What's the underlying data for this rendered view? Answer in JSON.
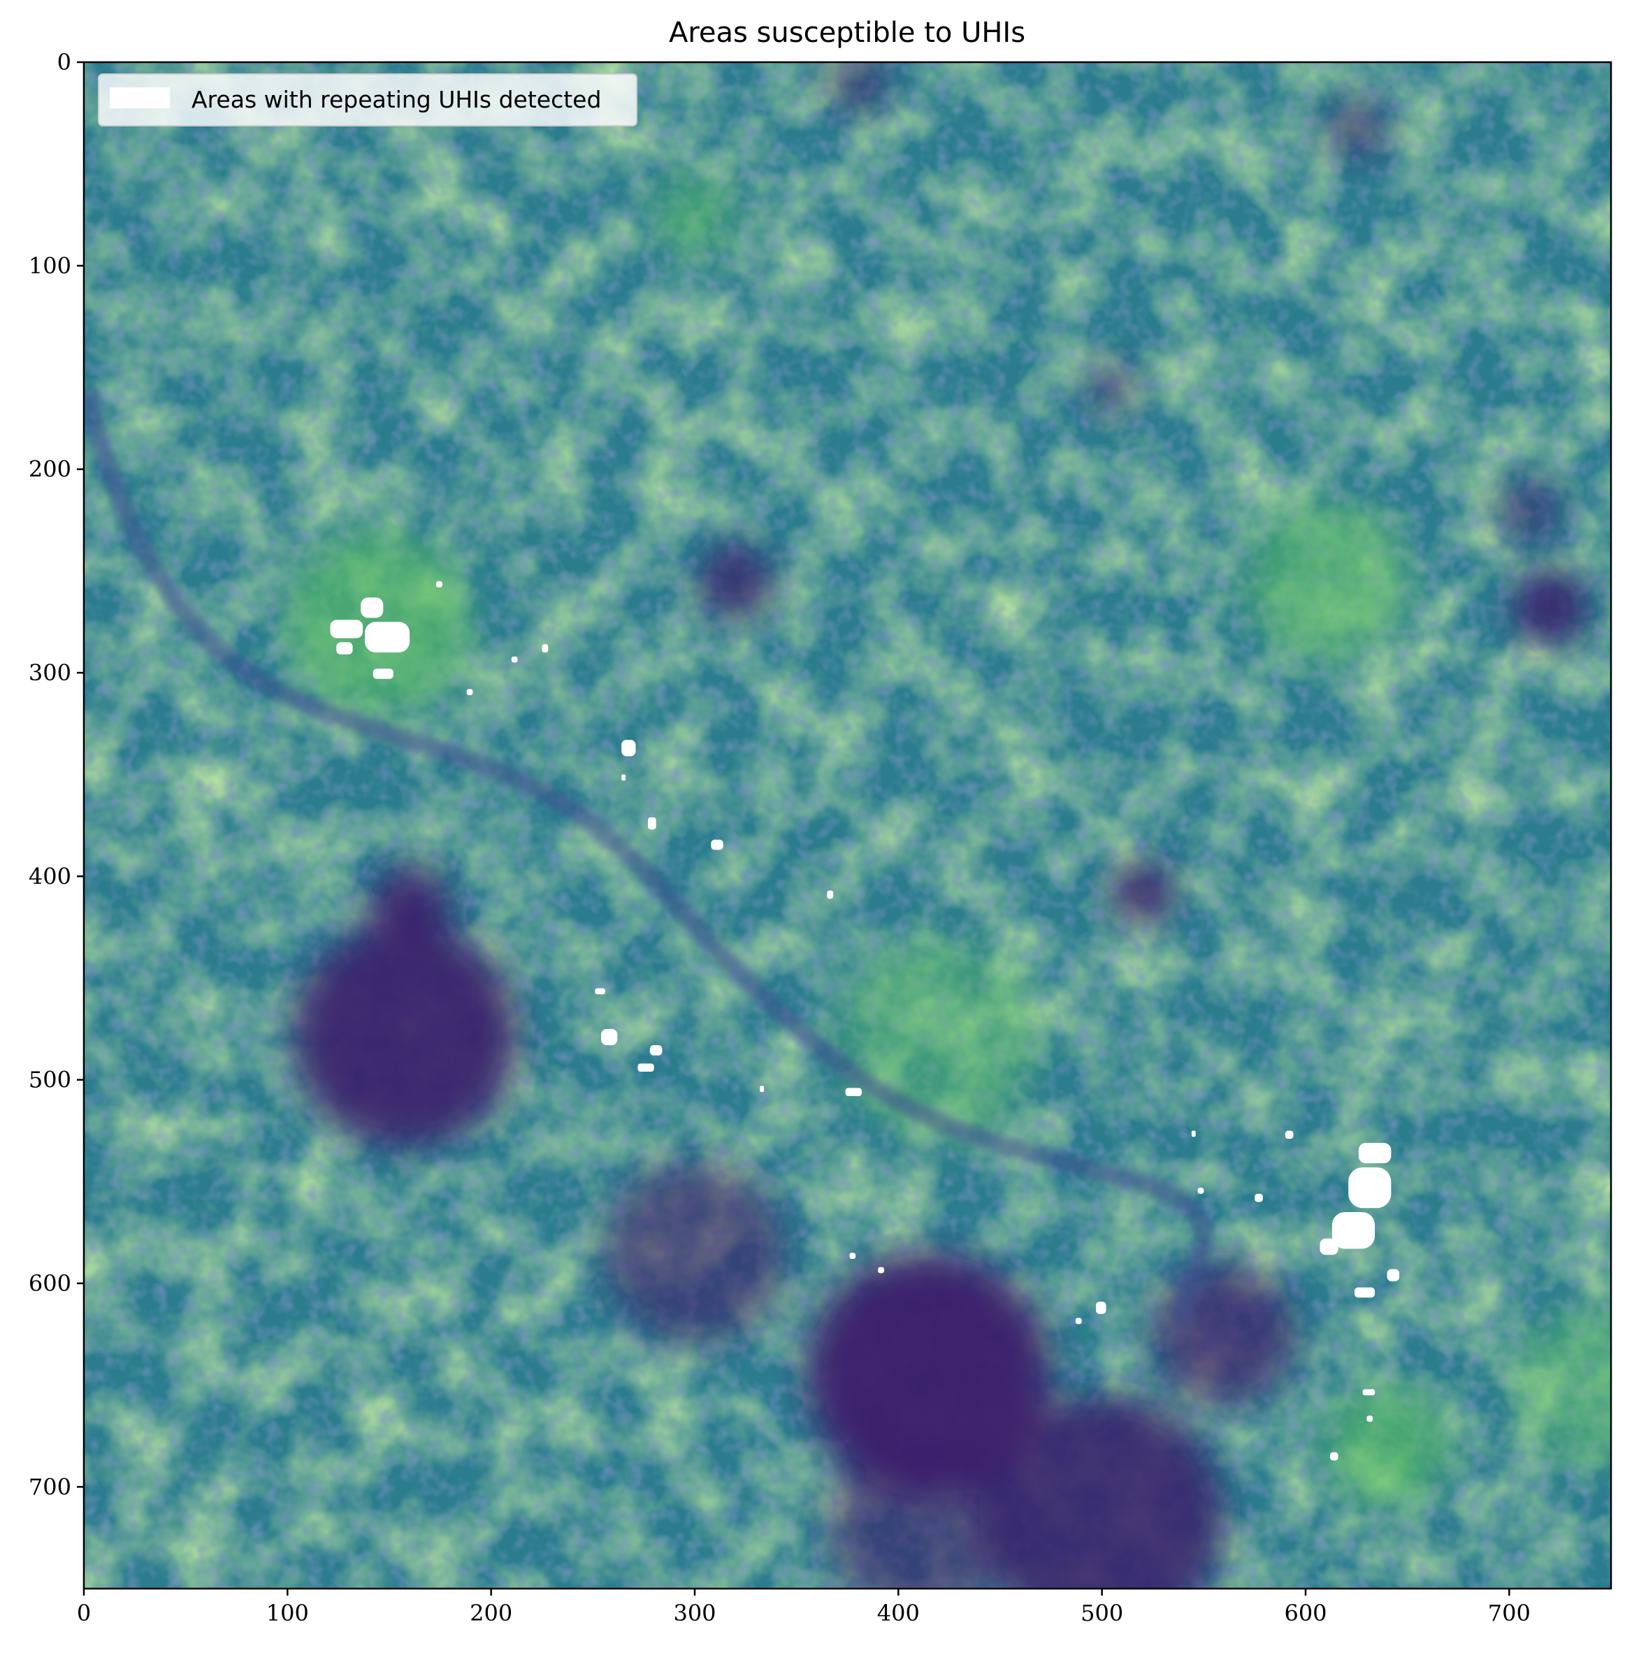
{
  "chart_data": {
    "type": "heatmap",
    "title": "Areas susceptible to UHIs",
    "xlabel": "",
    "ylabel": "",
    "xlim": [
      0,
      750
    ],
    "ylim": [
      750,
      0
    ],
    "x_ticks": [
      0,
      100,
      200,
      300,
      400,
      500,
      600,
      700
    ],
    "y_ticks": [
      0,
      100,
      200,
      300,
      400,
      500,
      600,
      700
    ],
    "colormap": "viridis",
    "colormap_range_used": [
      "#3b1f6b",
      "#bde34a"
    ],
    "grid": false,
    "legend": {
      "placement": "upper-left",
      "entries": [
        {
          "label": "Areas with repeating UHIs detected",
          "color": "#ffffff"
        }
      ]
    },
    "hot_regions": [
      {
        "x": 158,
        "y": 478,
        "r": 55,
        "strength": 0.9
      },
      {
        "x": 160,
        "y": 415,
        "r": 20,
        "strength": 0.9
      },
      {
        "x": 415,
        "y": 645,
        "r": 60,
        "strength": 0.95
      },
      {
        "x": 560,
        "y": 625,
        "r": 35,
        "strength": 0.7
      },
      {
        "x": 500,
        "y": 715,
        "r": 60,
        "strength": 0.85
      },
      {
        "x": 300,
        "y": 585,
        "r": 45,
        "strength": 0.6
      },
      {
        "x": 320,
        "y": 255,
        "r": 18,
        "strength": 0.8
      },
      {
        "x": 410,
        "y": 720,
        "r": 45,
        "strength": 0.6
      },
      {
        "x": 520,
        "y": 408,
        "r": 15,
        "strength": 0.9
      },
      {
        "x": 720,
        "y": 268,
        "r": 18,
        "strength": 0.9
      },
      {
        "x": 625,
        "y": 33,
        "r": 15,
        "strength": 0.6
      },
      {
        "x": 380,
        "y": 10,
        "r": 15,
        "strength": 0.6
      },
      {
        "x": 710,
        "y": 220,
        "r": 15,
        "strength": 0.6
      },
      {
        "x": 505,
        "y": 160,
        "r": 12,
        "strength": 0.6
      }
    ],
    "cool_regions": [
      {
        "x": 145,
        "y": 275,
        "r": 45,
        "strength": 0.6
      },
      {
        "x": 610,
        "y": 255,
        "r": 40,
        "strength": 0.5
      },
      {
        "x": 640,
        "y": 680,
        "r": 30,
        "strength": 0.6
      },
      {
        "x": 300,
        "y": 75,
        "r": 20,
        "strength": 0.5
      },
      {
        "x": 420,
        "y": 480,
        "r": 50,
        "strength": 0.4
      },
      {
        "x": 740,
        "y": 650,
        "r": 40,
        "strength": 0.4
      }
    ],
    "uhi_areas": [
      {
        "x": 136,
        "y": 263,
        "w": 11,
        "h": 10
      },
      {
        "x": 121,
        "y": 274,
        "w": 16,
        "h": 9
      },
      {
        "x": 138,
        "y": 275,
        "w": 22,
        "h": 15
      },
      {
        "x": 124,
        "y": 285,
        "w": 8,
        "h": 6
      },
      {
        "x": 142,
        "y": 298,
        "w": 10,
        "h": 5
      },
      {
        "x": 173,
        "y": 255,
        "w": 3,
        "h": 3
      },
      {
        "x": 225,
        "y": 286,
        "w": 3,
        "h": 4
      },
      {
        "x": 210,
        "y": 292,
        "w": 3,
        "h": 3
      },
      {
        "x": 188,
        "y": 308,
        "w": 3,
        "h": 3
      },
      {
        "x": 264,
        "y": 333,
        "w": 7,
        "h": 8
      },
      {
        "x": 264,
        "y": 350,
        "w": 2,
        "h": 3
      },
      {
        "x": 277,
        "y": 371,
        "w": 4,
        "h": 6
      },
      {
        "x": 308,
        "y": 382,
        "w": 6,
        "h": 5
      },
      {
        "x": 365,
        "y": 407,
        "w": 3,
        "h": 4
      },
      {
        "x": 251,
        "y": 455,
        "w": 5,
        "h": 3
      },
      {
        "x": 254,
        "y": 475,
        "w": 8,
        "h": 8
      },
      {
        "x": 278,
        "y": 483,
        "w": 6,
        "h": 5
      },
      {
        "x": 272,
        "y": 492,
        "w": 8,
        "h": 4
      },
      {
        "x": 374,
        "y": 504,
        "w": 8,
        "h": 4
      },
      {
        "x": 332,
        "y": 503,
        "w": 2,
        "h": 3
      },
      {
        "x": 544,
        "y": 525,
        "w": 2,
        "h": 3
      },
      {
        "x": 590,
        "y": 525,
        "w": 4,
        "h": 4
      },
      {
        "x": 547,
        "y": 553,
        "w": 3,
        "h": 3
      },
      {
        "x": 575,
        "y": 556,
        "w": 4,
        "h": 4
      },
      {
        "x": 626,
        "y": 531,
        "w": 16,
        "h": 10
      },
      {
        "x": 621,
        "y": 543,
        "w": 21,
        "h": 20
      },
      {
        "x": 613,
        "y": 565,
        "w": 21,
        "h": 18
      },
      {
        "x": 607,
        "y": 578,
        "w": 9,
        "h": 8
      },
      {
        "x": 640,
        "y": 593,
        "w": 6,
        "h": 6
      },
      {
        "x": 624,
        "y": 602,
        "w": 10,
        "h": 5
      },
      {
        "x": 497,
        "y": 609,
        "w": 5,
        "h": 6
      },
      {
        "x": 487,
        "y": 617,
        "w": 3,
        "h": 3
      },
      {
        "x": 390,
        "y": 592,
        "w": 3,
        "h": 3
      },
      {
        "x": 376,
        "y": 585,
        "w": 3,
        "h": 3
      },
      {
        "x": 628,
        "y": 652,
        "w": 6,
        "h": 3
      },
      {
        "x": 630,
        "y": 665,
        "w": 3,
        "h": 3
      },
      {
        "x": 612,
        "y": 683,
        "w": 4,
        "h": 4
      }
    ]
  }
}
